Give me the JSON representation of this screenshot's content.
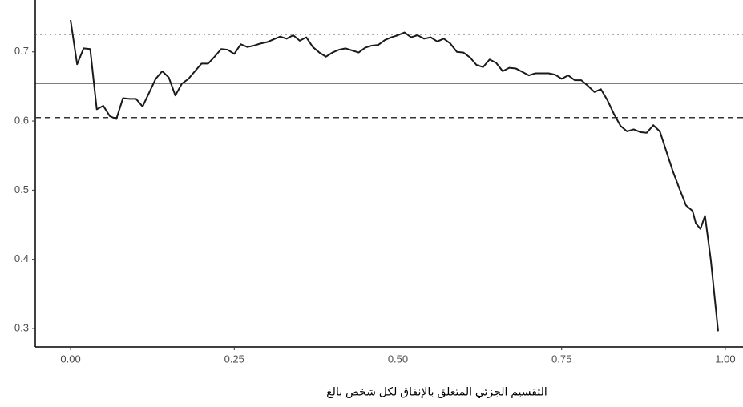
{
  "chart_data": {
    "type": "line",
    "x_label": "التقسيم الجزئي المتعلق بالإنفاق لكل شخص بالغ",
    "xlim": [
      -0.0539,
      1.027
    ],
    "ylim": [
      0.2733,
      0.775
    ],
    "xticks": [
      {
        "value": 0,
        "label": "0.00"
      },
      {
        "value": 0.25,
        "label": "0.25"
      },
      {
        "value": 0.5,
        "label": "0.50"
      },
      {
        "value": 0.75,
        "label": "0.75"
      },
      {
        "value": 1,
        "label": "1.00"
      }
    ],
    "yticks": [
      0.3,
      0.4,
      0.5,
      0.6,
      0.7
    ],
    "grid": false,
    "hlines": [
      {
        "value": 0.7255,
        "style": "dotted",
        "color": "#555555"
      },
      {
        "value": 0.6548,
        "style": "solid",
        "color": "#000000"
      },
      {
        "value": 0.605,
        "style": "dashed",
        "color": "#333333"
      }
    ],
    "x": [
      0,
      0.01,
      0.02,
      0.03,
      0.04,
      0.05,
      0.06,
      0.07,
      0.08,
      0.09,
      0.1,
      0.11,
      0.12,
      0.13,
      0.14,
      0.15,
      0.16,
      0.17,
      0.18,
      0.19,
      0.2,
      0.21,
      0.22,
      0.23,
      0.24,
      0.25,
      0.26,
      0.27,
      0.28,
      0.29,
      0.3,
      0.31,
      0.32,
      0.33,
      0.34,
      0.35,
      0.36,
      0.37,
      0.38,
      0.39,
      0.4,
      0.41,
      0.42,
      0.43,
      0.44,
      0.45,
      0.46,
      0.47,
      0.48,
      0.49,
      0.5,
      0.51,
      0.52,
      0.53,
      0.54,
      0.55,
      0.56,
      0.57,
      0.58,
      0.59,
      0.6,
      0.61,
      0.62,
      0.63,
      0.64,
      0.65,
      0.66,
      0.67,
      0.68,
      0.69,
      0.7,
      0.71,
      0.72,
      0.73,
      0.74,
      0.75,
      0.76,
      0.77,
      0.78,
      0.79,
      0.8,
      0.81,
      0.82,
      0.83,
      0.84,
      0.85,
      0.86,
      0.87,
      0.88,
      0.89,
      0.9,
      0.91,
      0.92,
      0.93,
      0.94,
      0.95,
      0.955,
      0.962,
      0.969,
      0.978,
      0.989
    ],
    "series": [
      {
        "color": "#1a1a1a",
        "values": [
          0.746,
          0.682,
          0.705,
          0.704,
          0.617,
          0.622,
          0.607,
          0.603,
          0.633,
          0.632,
          0.632,
          0.621,
          0.641,
          0.661,
          0.672,
          0.663,
          0.637,
          0.654,
          0.661,
          0.672,
          0.683,
          0.683,
          0.693,
          0.704,
          0.703,
          0.697,
          0.711,
          0.707,
          0.709,
          0.712,
          0.714,
          0.718,
          0.722,
          0.719,
          0.724,
          0.716,
          0.721,
          0.707,
          0.699,
          0.693,
          0.699,
          0.703,
          0.705,
          0.702,
          0.699,
          0.706,
          0.709,
          0.71,
          0.717,
          0.721,
          0.724,
          0.728,
          0.721,
          0.724,
          0.719,
          0.721,
          0.715,
          0.719,
          0.712,
          0.7,
          0.699,
          0.692,
          0.681,
          0.678,
          0.689,
          0.684,
          0.672,
          0.677,
          0.676,
          0.671,
          0.666,
          0.669,
          0.669,
          0.669,
          0.667,
          0.661,
          0.666,
          0.659,
          0.659,
          0.651,
          0.642,
          0.646,
          0.63,
          0.61,
          0.593,
          0.585,
          0.588,
          0.584,
          0.583,
          0.594,
          0.585,
          0.556,
          0.527,
          0.502,
          0.478,
          0.47,
          0.452,
          0.444,
          0.463,
          0.398,
          0.296
        ]
      }
    ]
  }
}
